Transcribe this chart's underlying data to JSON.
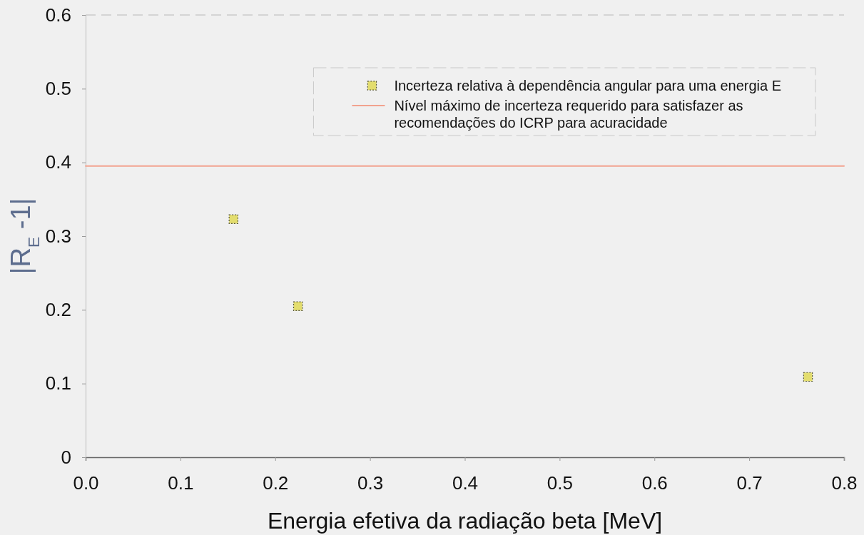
{
  "chart_data": {
    "type": "scatter",
    "xlabel": "Energia efetiva da radiação beta [MeV]",
    "ylabel": "|R$_{E}$ -1|",
    "xlim": [
      0,
      0.8
    ],
    "xticks": [
      {
        "value": 0,
        "label": "0.0"
      },
      0.1,
      0.2,
      0.3,
      0.4,
      0.5,
      0.6,
      0.7,
      0.8
    ],
    "ylim": [
      0,
      0.6
    ],
    "yticks": [
      0,
      0.1,
      0.2,
      0.3,
      0.4,
      0.5,
      0.6
    ],
    "series": [
      {
        "name": "Incerteza relativa à dependência angular para uma energia E",
        "color": "#e3dd6e",
        "marker": "square",
        "x": [
          0.156,
          0.224,
          0.762
        ],
        "values": [
          0.323,
          0.205,
          0.109
        ]
      },
      {
        "type": "line",
        "name": "Nível máximo de incerteza requerido para satisfazer as recomendações do ICRP para acuracidade",
        "color": "#f2a28f",
        "line_style": "solid",
        "x": [
          0,
          0.8
        ],
        "values": [
          0.395,
          0.395
        ]
      }
    ],
    "legend": "top right"
  }
}
